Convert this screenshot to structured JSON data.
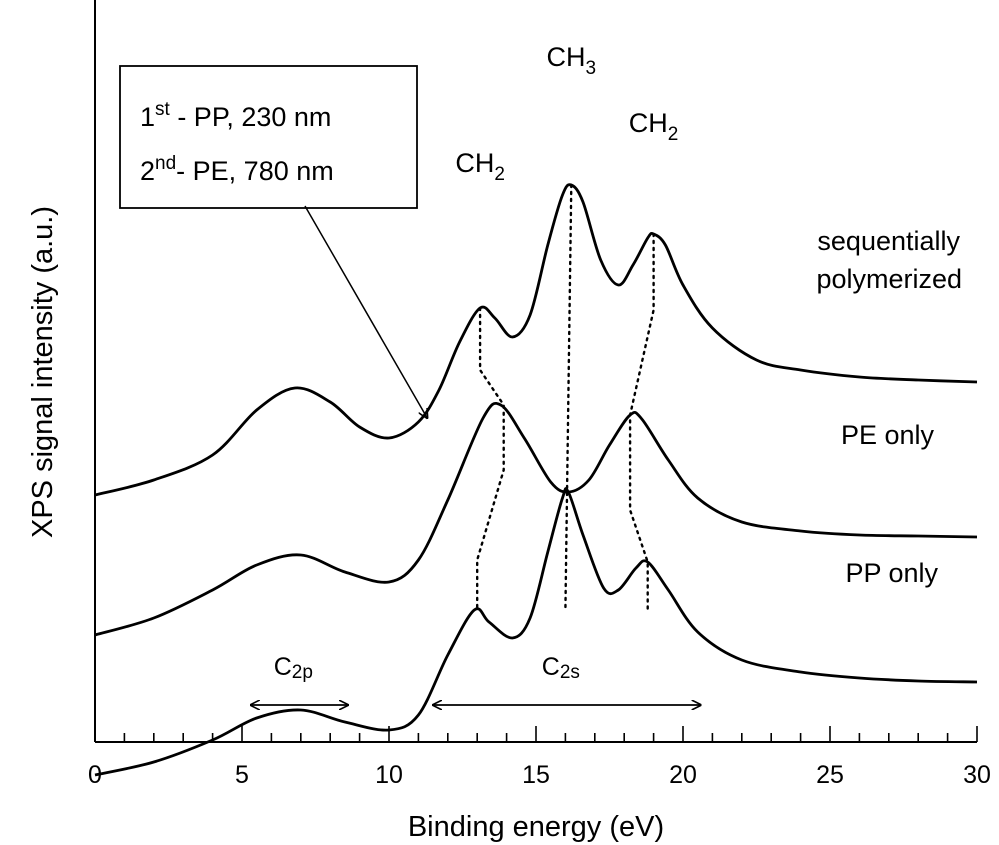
{
  "chart_data": {
    "type": "line",
    "xlabel": "Binding energy (eV)",
    "ylabel": "XPS signal intensity (a.u.)",
    "xlim": [
      0,
      30
    ],
    "xticks": [
      0,
      5,
      10,
      15,
      20,
      25,
      30
    ],
    "x_minor_step": 1,
    "y_ticks": "none",
    "grid": false,
    "series": [
      {
        "name": "sequentially polymerized",
        "baseline": 0.45,
        "points": [
          [
            0,
            0.45
          ],
          [
            2,
            0.6
          ],
          [
            4,
            0.85
          ],
          [
            5.5,
            1.3
          ],
          [
            6.8,
            1.52
          ],
          [
            8,
            1.38
          ],
          [
            9,
            1.13
          ],
          [
            10,
            1.02
          ],
          [
            11,
            1.18
          ],
          [
            11.7,
            1.5
          ],
          [
            12.4,
            1.98
          ],
          [
            13.1,
            2.32
          ],
          [
            13.6,
            2.22
          ],
          [
            14.2,
            2.03
          ],
          [
            14.8,
            2.25
          ],
          [
            15.4,
            2.95
          ],
          [
            15.9,
            3.45
          ],
          [
            16.2,
            3.55
          ],
          [
            16.6,
            3.38
          ],
          [
            17.2,
            2.8
          ],
          [
            17.8,
            2.55
          ],
          [
            18.3,
            2.75
          ],
          [
            18.8,
            3.02
          ],
          [
            19.0,
            3.06
          ],
          [
            19.4,
            2.95
          ],
          [
            20,
            2.55
          ],
          [
            21,
            2.12
          ],
          [
            22.5,
            1.8
          ],
          [
            24,
            1.7
          ],
          [
            26,
            1.63
          ],
          [
            28,
            1.6
          ],
          [
            30,
            1.58
          ]
        ]
      },
      {
        "name": "PE only",
        "baseline": -0.95,
        "points": [
          [
            0,
            -0.95
          ],
          [
            2,
            -0.78
          ],
          [
            4,
            -0.5
          ],
          [
            5.5,
            -0.25
          ],
          [
            7,
            -0.15
          ],
          [
            8.5,
            -0.32
          ],
          [
            10,
            -0.42
          ],
          [
            11,
            -0.2
          ],
          [
            12,
            0.4
          ],
          [
            13.2,
            1.22
          ],
          [
            13.8,
            1.35
          ],
          [
            14.6,
            1.02
          ],
          [
            15.5,
            0.58
          ],
          [
            16.1,
            0.48
          ],
          [
            16.8,
            0.6
          ],
          [
            17.5,
            0.95
          ],
          [
            18.2,
            1.25
          ],
          [
            18.6,
            1.21
          ],
          [
            19.5,
            0.8
          ],
          [
            20.5,
            0.42
          ],
          [
            22,
            0.18
          ],
          [
            24,
            0.09
          ],
          [
            26,
            0.05
          ],
          [
            28,
            0.04
          ],
          [
            30,
            0.03
          ]
        ]
      },
      {
        "name": "PP only",
        "baseline": -2.35,
        "points": [
          [
            0,
            -2.35
          ],
          [
            2,
            -2.22
          ],
          [
            4,
            -2.0
          ],
          [
            5.5,
            -1.78
          ],
          [
            7,
            -1.7
          ],
          [
            8.5,
            -1.82
          ],
          [
            10,
            -1.9
          ],
          [
            11,
            -1.75
          ],
          [
            12,
            -1.15
          ],
          [
            12.9,
            -0.7
          ],
          [
            13.4,
            -0.82
          ],
          [
            14.2,
            -0.98
          ],
          [
            14.8,
            -0.78
          ],
          [
            15.4,
            -0.12
          ],
          [
            15.9,
            0.42
          ],
          [
            16.1,
            0.48
          ],
          [
            16.6,
            0.05
          ],
          [
            17.3,
            -0.48
          ],
          [
            17.8,
            -0.5
          ],
          [
            18.4,
            -0.28
          ],
          [
            18.8,
            -0.22
          ],
          [
            19.5,
            -0.5
          ],
          [
            20.5,
            -0.92
          ],
          [
            22,
            -1.2
          ],
          [
            24,
            -1.32
          ],
          [
            26,
            -1.38
          ],
          [
            28,
            -1.41
          ],
          [
            30,
            -1.42
          ]
        ]
      }
    ],
    "peak_labels": [
      {
        "text": "CH",
        "sub": "2",
        "x": 13.1
      },
      {
        "text": "CH",
        "sub": "3",
        "x": 16.2
      },
      {
        "text": "CH",
        "sub": "2",
        "x": 19.0
      }
    ],
    "peak_guides": [
      [
        [
          13.1,
          2.32
        ],
        [
          13.1,
          1.7
        ],
        [
          13.9,
          1.35
        ],
        [
          13.9,
          0.7
        ],
        [
          13.0,
          -0.2
        ],
        [
          13.0,
          -0.7
        ]
      ],
      [
        [
          16.2,
          3.55
        ],
        [
          16.0,
          -0.7
        ]
      ],
      [
        [
          19.0,
          3.06
        ],
        [
          19.0,
          2.3
        ],
        [
          18.2,
          1.25
        ],
        [
          18.2,
          0.3
        ],
        [
          18.8,
          -0.22
        ],
        [
          18.8,
          -0.7
        ]
      ]
    ],
    "band_markers": [
      {
        "label_main": "C",
        "label_sub": "2p",
        "from": 5.3,
        "to": 8.6
      },
      {
        "label_main": "C",
        "label_sub": "2s",
        "from": 11.5,
        "to": 20.6
      }
    ],
    "annotation": {
      "line1_prefix": "1",
      "line1_sup": "st",
      "line1_rest": " - PP, 230 nm",
      "line2_prefix": "2",
      "line2_sup": "nd",
      "line2_rest": "- PE, 780 nm",
      "arrow_target_x": 11.3,
      "arrow_target_y": 1.18
    },
    "series_label_lines": [
      [
        "sequentially",
        "polymerized"
      ],
      [
        "PE only"
      ],
      [
        "PP only"
      ]
    ]
  }
}
